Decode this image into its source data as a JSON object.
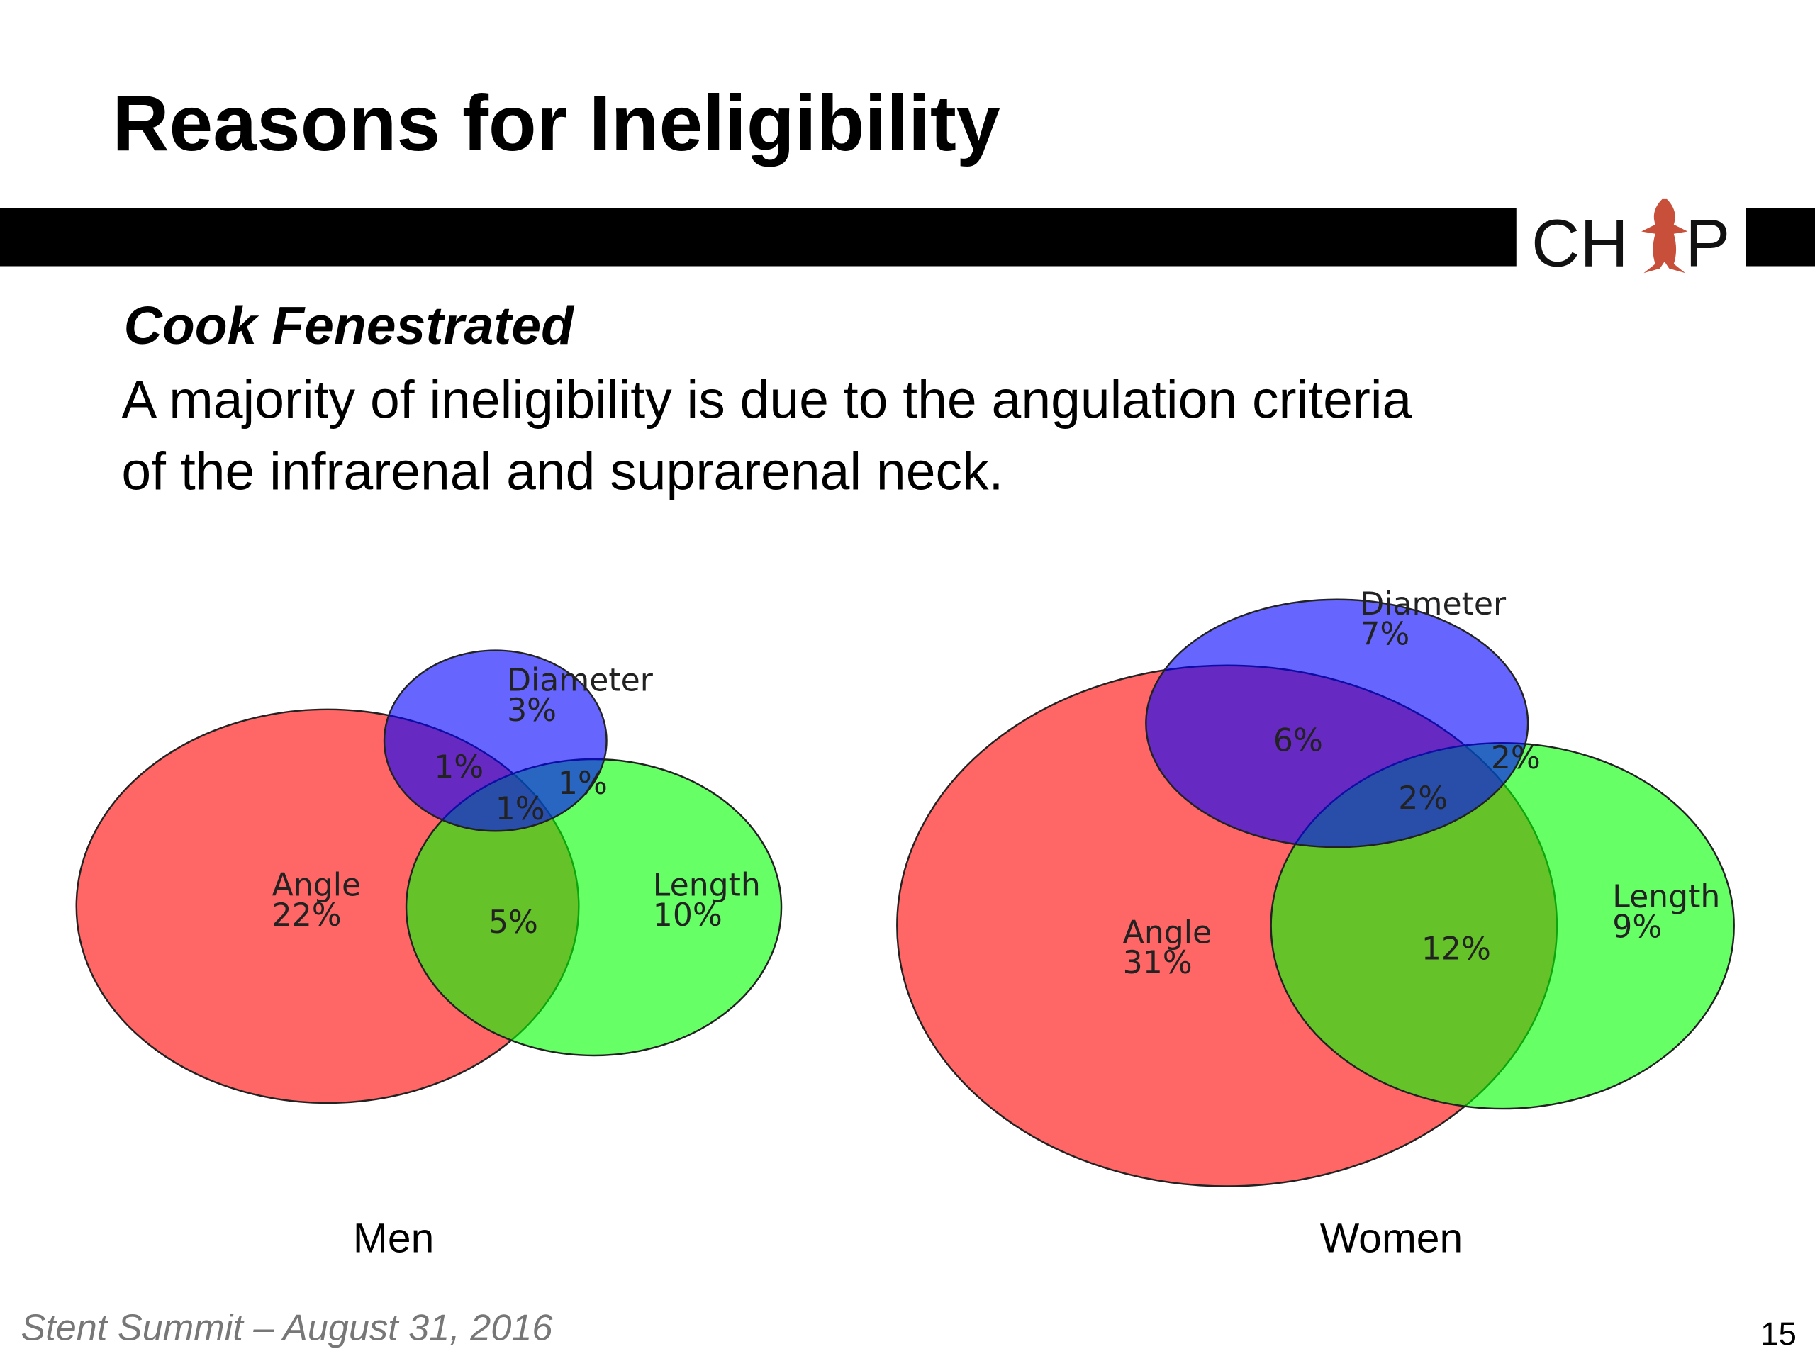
{
  "header": {
    "title": "Reasons for Ineligibility",
    "logo": [
      "CH",
      "P"
    ]
  },
  "subtitle": "Cook Fenestrated",
  "body": [
    "A majority of ineligibility is due to the angulation criteria",
    "of the infrarenal and suprarenal neck."
  ],
  "diagrams": [
    {
      "caption": "Men",
      "regions": [
        {
          "name": "Diameter",
          "value": "3%"
        },
        {
          "value": "1%"
        },
        {
          "value": "1%"
        },
        {
          "value": "1%"
        },
        {
          "name": "Angle",
          "value": "22%"
        },
        {
          "value": "5%"
        },
        {
          "name": "Length",
          "value": "10%"
        }
      ]
    },
    {
      "caption": "Women",
      "regions": [
        {
          "name": "Diameter",
          "value": "7%"
        },
        {
          "value": "6%"
        },
        {
          "value": "2%"
        },
        {
          "value": "2%"
        },
        {
          "name": "Angle",
          "value": "31%"
        },
        {
          "value": "12%"
        },
        {
          "name": "Length",
          "value": "9%"
        }
      ]
    }
  ],
  "footer": {
    "text": "Stent Summit – August 31, 2016",
    "page": "15"
  }
}
